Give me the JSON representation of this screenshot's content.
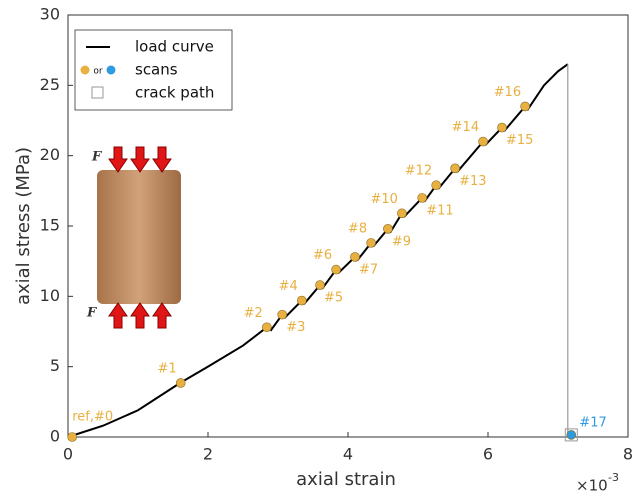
{
  "chart_data": {
    "type": "line",
    "xlabel": "axial strain",
    "ylabel": "axial stress (MPa)",
    "x_multiplier": "×10",
    "x_exponent": "-3",
    "xlim": [
      0,
      8
    ],
    "xticks": [
      0,
      2,
      4,
      6,
      8
    ],
    "ylim": [
      0,
      30
    ],
    "yticks": [
      0,
      5,
      10,
      15,
      20,
      25,
      30
    ],
    "legend": "upper left",
    "inset_labels": [
      "F",
      "F"
    ],
    "series": [
      {
        "name": "load curve",
        "color": "#000000",
        "x": [
          0,
          0.5,
          1.0,
          1.6,
          2.0,
          2.5,
          2.84,
          2.9,
          3.06,
          3.1,
          3.34,
          3.38,
          3.6,
          3.64,
          3.83,
          3.87,
          4.1,
          4.14,
          4.33,
          4.37,
          4.57,
          4.61,
          4.77,
          4.81,
          5.06,
          5.1,
          5.26,
          5.3,
          5.53,
          5.57,
          5.93,
          5.97,
          6.2,
          6.24,
          6.53,
          6.57,
          6.8,
          7.0,
          7.14
        ],
        "y": [
          0,
          0.8,
          1.9,
          3.84,
          5.0,
          6.5,
          7.8,
          7.6,
          8.7,
          8.5,
          9.7,
          9.5,
          10.8,
          10.6,
          11.9,
          11.7,
          12.8,
          12.6,
          13.8,
          13.6,
          14.8,
          14.6,
          15.9,
          15.7,
          17.0,
          16.8,
          17.9,
          17.7,
          19.1,
          18.9,
          21.0,
          20.8,
          22.0,
          21.8,
          23.5,
          23.3,
          25.0,
          26.0,
          26.5
        ]
      },
      {
        "color": "#999999",
        "x": [
          7.14,
          7.14
        ],
        "y": [
          26.5,
          0
        ]
      },
      {
        "name": "scans",
        "legend_joiner": "or",
        "color": "#e8b040",
        "color_alt": "#2e9be0",
        "x": [
          0.06,
          1.61,
          2.84,
          3.06,
          3.34,
          3.6,
          3.83,
          4.1,
          4.33,
          4.57,
          4.77,
          5.06,
          5.26,
          5.53,
          5.93,
          6.2,
          6.53,
          7.19
        ],
        "y": [
          0,
          3.84,
          7.8,
          8.7,
          9.7,
          10.8,
          11.9,
          12.8,
          13.8,
          14.8,
          15.9,
          17.0,
          17.9,
          19.1,
          21.0,
          22.0,
          23.5,
          0.15
        ],
        "labels": [
          "ref,#0",
          "#1",
          "#2",
          "#3",
          "#4",
          "#5",
          "#6",
          "#7",
          "#8",
          "#9",
          "#10",
          "#11",
          "#12",
          "#13",
          "#14",
          "#15",
          "#16",
          "#17"
        ],
        "point_colors": [
          "#e8b040",
          "#e8b040",
          "#e8b040",
          "#e8b040",
          "#e8b040",
          "#e8b040",
          "#e8b040",
          "#e8b040",
          "#e8b040",
          "#e8b040",
          "#e8b040",
          "#e8b040",
          "#e8b040",
          "#e8b040",
          "#e8b040",
          "#e8b040",
          "#e8b040",
          "#2e9be0"
        ]
      },
      {
        "name": "crack path",
        "color": "#999999",
        "x": [
          7.19
        ],
        "y": [
          0.15
        ]
      }
    ]
  }
}
